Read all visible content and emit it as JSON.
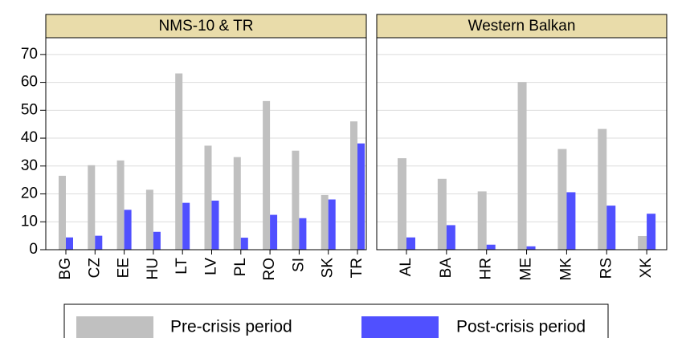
{
  "chart_data": {
    "type": "bar",
    "series": [
      {
        "name": "Pre-crisis period",
        "color": "#c0c0c0"
      },
      {
        "name": "Post-crisis period",
        "color": "#5050ff"
      }
    ],
    "ylim": [
      0,
      76
    ],
    "yticks": [
      0,
      10,
      20,
      30,
      40,
      50,
      60,
      70
    ],
    "grid": true,
    "panels": [
      {
        "title": "NMS-10 & TR",
        "categories": [
          "BG",
          "CZ",
          "EE",
          "HU",
          "LT",
          "LV",
          "PL",
          "RO",
          "SI",
          "SK",
          "TR"
        ],
        "values": [
          [
            26.5,
            30.3,
            32,
            21.5,
            63.2,
            37.3,
            33.2,
            53.3,
            35.5,
            19.6,
            46
          ],
          [
            4.4,
            5,
            14.3,
            6.4,
            16.8,
            17.6,
            4.3,
            12.5,
            11.3,
            18,
            38.1
          ]
        ]
      },
      {
        "title": "Western Balkan",
        "categories": [
          "AL",
          "BA",
          "HR",
          "ME",
          "MK",
          "RS",
          "XK"
        ],
        "values": [
          [
            32.8,
            25.4,
            20.9,
            60.1,
            36.1,
            43.3,
            4.9
          ],
          [
            4.4,
            8.8,
            1.8,
            1.2,
            20.6,
            15.8,
            12.9
          ]
        ]
      }
    ]
  }
}
